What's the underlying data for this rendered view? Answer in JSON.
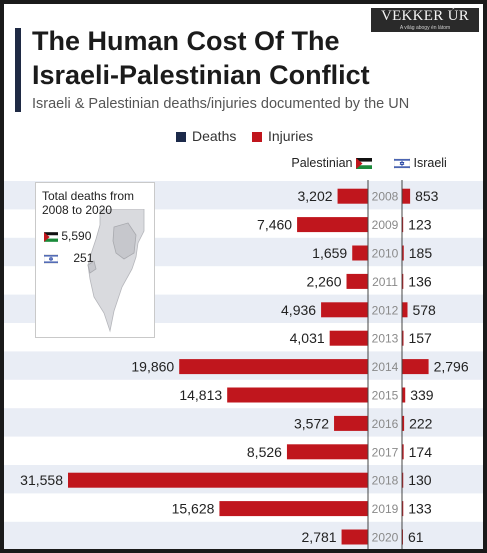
{
  "watermark": {
    "name": "VEKKER ÚR",
    "tagline": "A világ abogy én látom"
  },
  "title": [
    "The Human Cost Of The",
    "Israeli-Palestinian Conflict"
  ],
  "subtitle": "Israeli & Palestinian deaths/injuries documented by the UN",
  "legend": [
    {
      "label": "Deaths",
      "color": "#1c2a4a"
    },
    {
      "label": "Injuries",
      "color": "#c0161d"
    }
  ],
  "sides": {
    "left": "Palestinian",
    "right": "Israeli"
  },
  "inset": {
    "title": "Total deaths from 2008 to 2020",
    "palestinian_deaths": "5,590",
    "israeli_deaths": "251"
  },
  "colors": {
    "deaths": "#1c2a4a",
    "injuries": "#c0161d",
    "row_shade": "#e9edf5",
    "axis": "#444444"
  },
  "chart_data": {
    "type": "bar",
    "categories": [
      "2008",
      "2009",
      "2010",
      "2011",
      "2012",
      "2013",
      "2014",
      "2015",
      "2016",
      "2017",
      "2018",
      "2019",
      "2020"
    ],
    "series": [
      {
        "name": "Palestinian",
        "values": [
          3202,
          7460,
          1659,
          2260,
          4936,
          4031,
          19860,
          14813,
          3572,
          8526,
          31558,
          15628,
          2781
        ]
      },
      {
        "name": "Israeli",
        "values": [
          853,
          123,
          185,
          136,
          578,
          157,
          2796,
          339,
          222,
          174,
          130,
          133,
          61
        ]
      }
    ],
    "value_labels": {
      "palestinian": [
        "3,202",
        "7,460",
        "1,659",
        "2,260",
        "4,936",
        "4,031",
        "19,860",
        "14,813",
        "3,572",
        "8,526",
        "31,558",
        "15,628",
        "2,781"
      ],
      "israeli": [
        "853",
        "123",
        "185",
        "136",
        "578",
        "157",
        "2,796",
        "339",
        "222",
        "174",
        "130",
        "133",
        "61"
      ]
    }
  }
}
